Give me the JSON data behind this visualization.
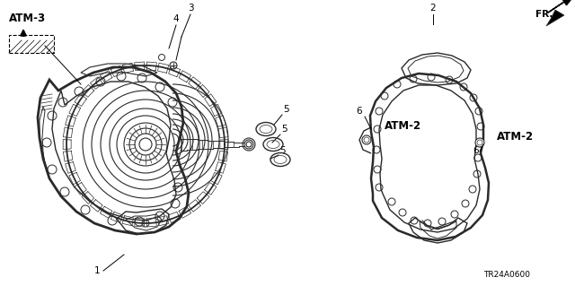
{
  "bg_color": "#ffffff",
  "line_color": "#2a2a2a",
  "text_color": "#000000",
  "atm3_label": "ATM-3",
  "atm2_label1": "ATM-2",
  "atm2_label2": "ATM-2",
  "fr_label": "FR.",
  "footer": "TR24A0600",
  "fig_width": 6.4,
  "fig_height": 3.19,
  "dpi": 100
}
